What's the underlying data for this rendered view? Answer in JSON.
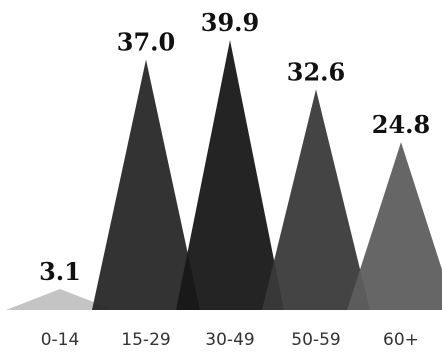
{
  "chart_data": {
    "type": "bar",
    "categories": [
      "0-14",
      "15-29",
      "30-49",
      "50-59",
      "60+"
    ],
    "values": [
      3.1,
      37.0,
      39.9,
      32.6,
      24.8
    ],
    "value_labels": [
      "3.1",
      "37.0",
      "39.9",
      "32.6",
      "24.8"
    ],
    "mark_shape": "triangle",
    "title": "",
    "xlabel": "",
    "ylabel": "",
    "ylim": [
      0,
      39.9
    ],
    "grid": false,
    "legend": "none",
    "colors": [
      "#c4c4c4",
      "#282828",
      "#181818",
      "#3a3a3a",
      "#5e5e5e"
    ]
  }
}
